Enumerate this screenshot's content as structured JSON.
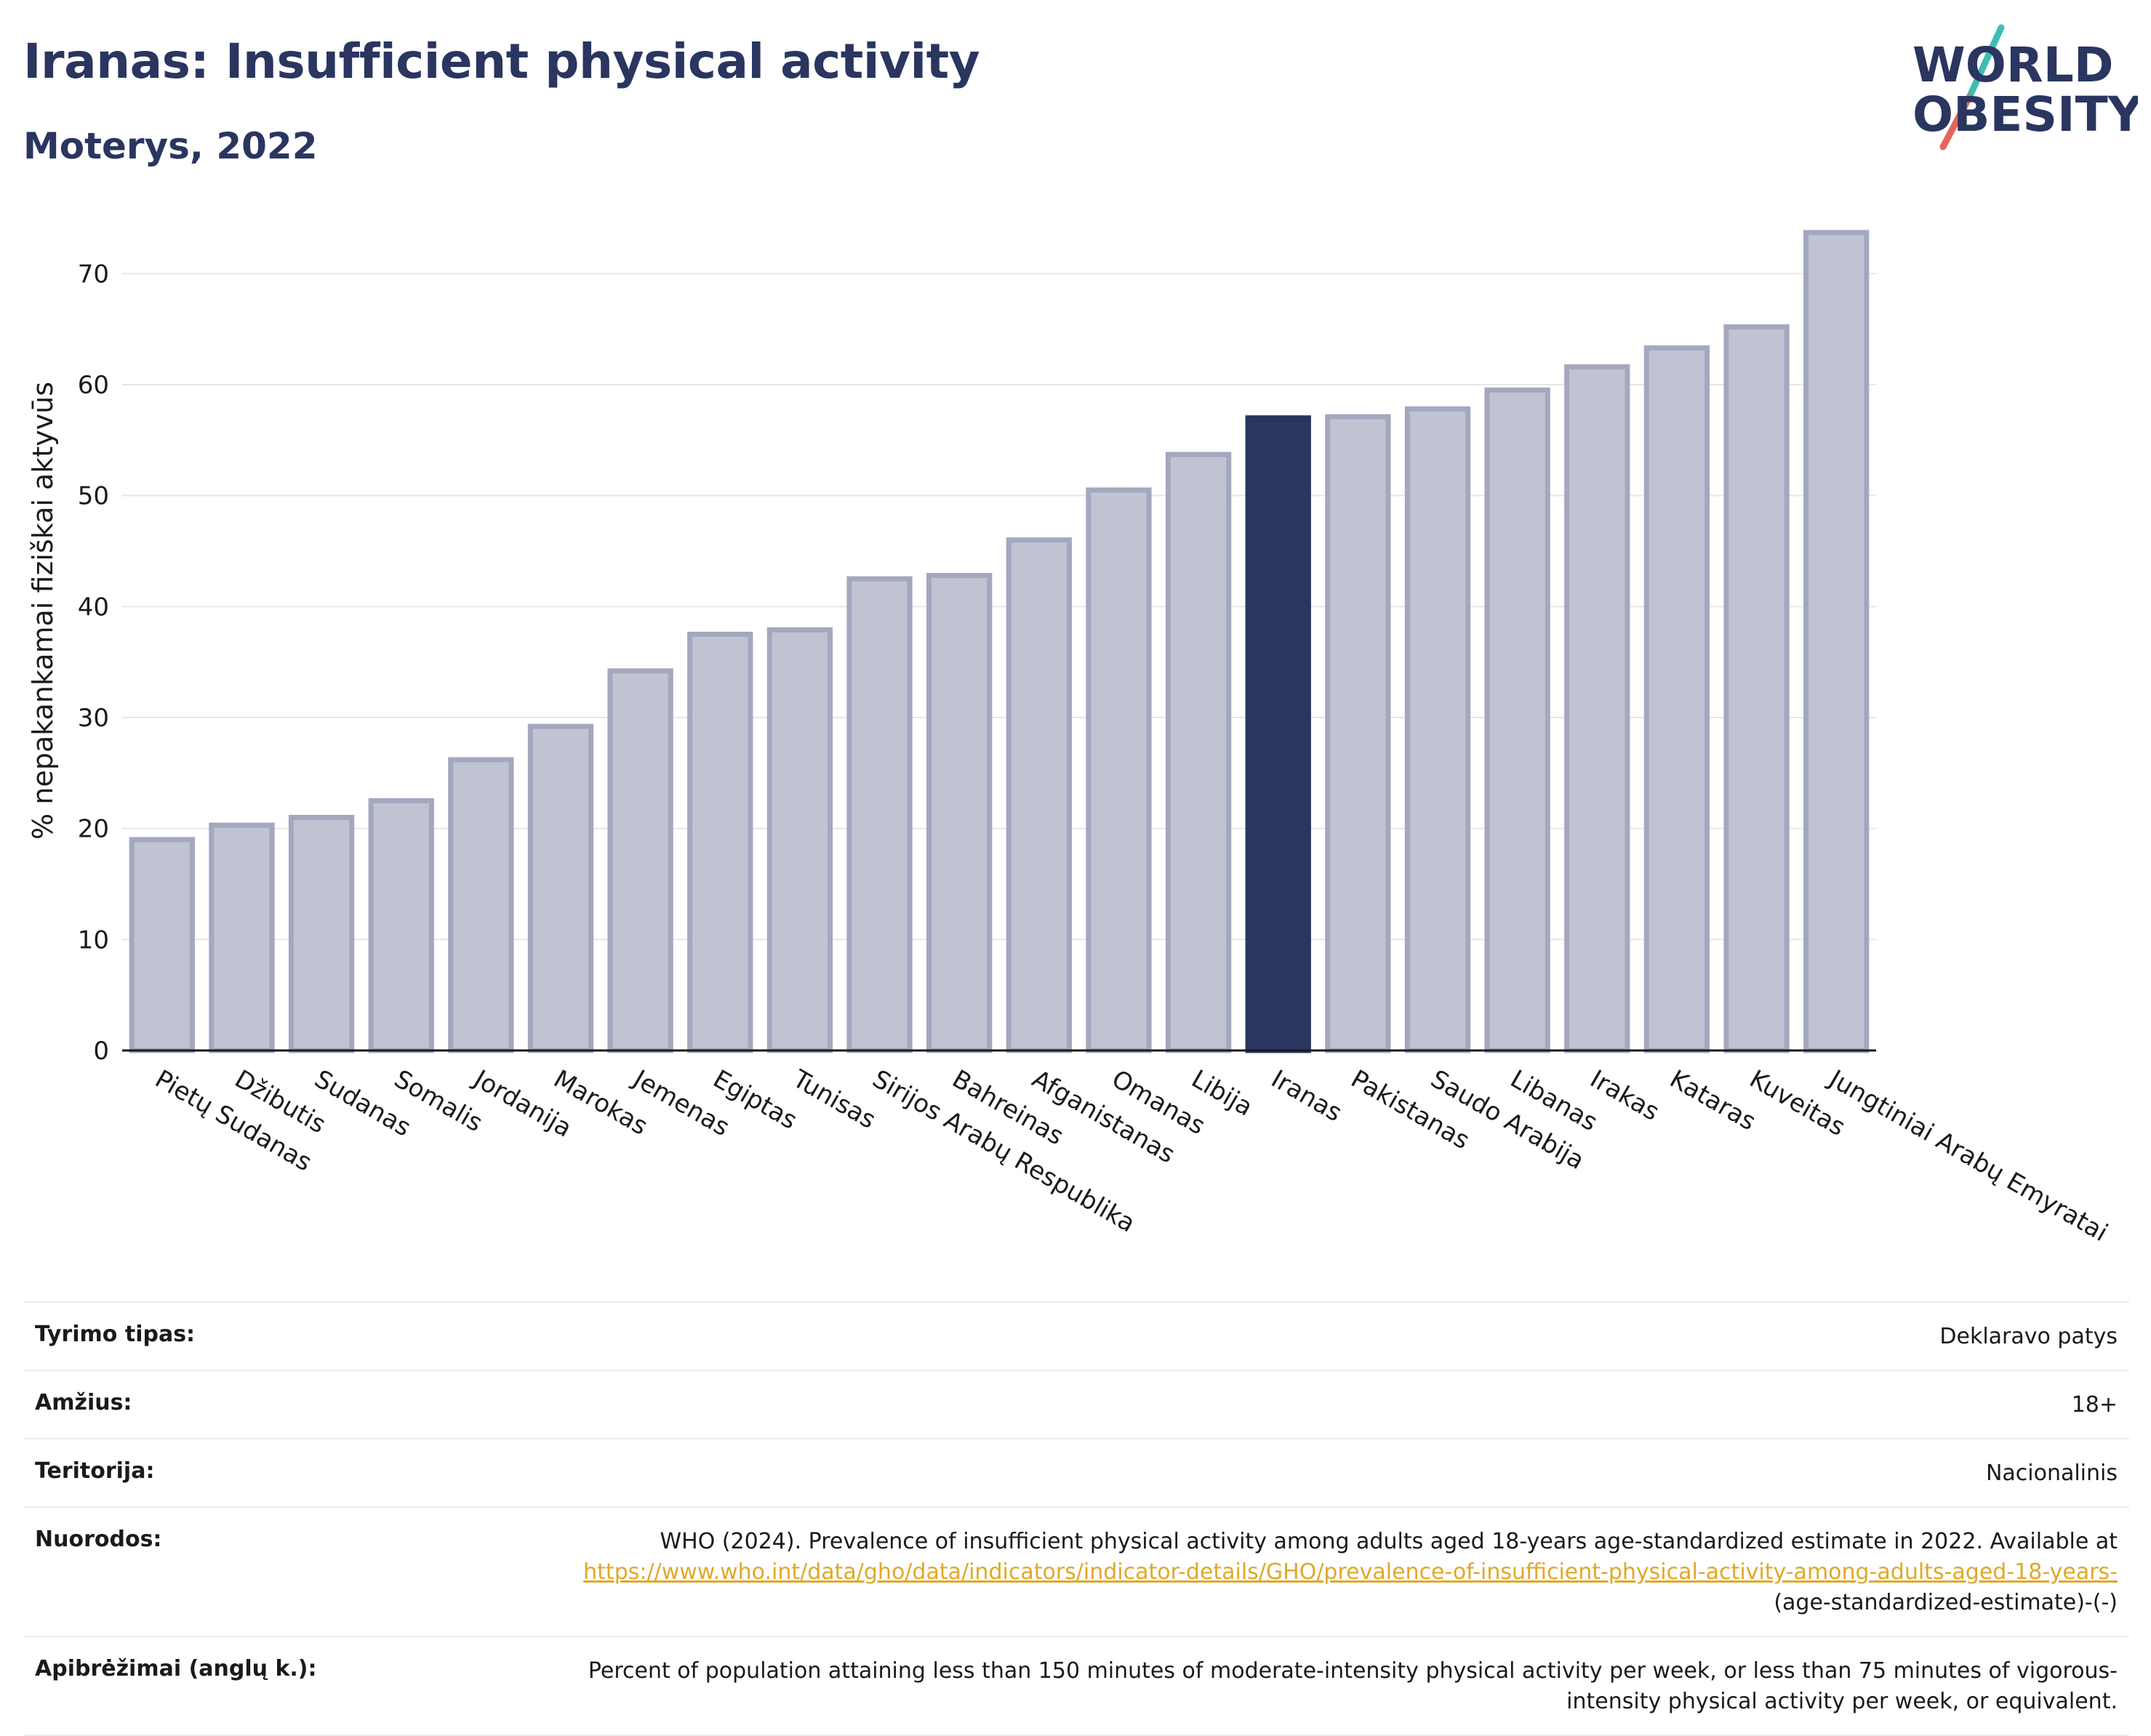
{
  "header": {
    "title": "Iranas: Insufficient physical activity",
    "subtitle": "Moterys, 2022"
  },
  "logo": {
    "line1": "WORLD",
    "line2": "OBESITY",
    "colors": {
      "text": "#2a3560",
      "slash_teal": "#3fbdb5",
      "slash_red": "#e3665a"
    }
  },
  "colors": {
    "bar_default": "#c0c3d1",
    "bar_border": "#a3a8bf",
    "bar_highlight": "#2a3560",
    "grid": "#e6e6e6"
  },
  "chart_data": {
    "type": "bar",
    "ylabel": "% nepakankamai fiziškai aktyvūs",
    "ylim": [
      0,
      75
    ],
    "yticks": [
      0,
      10,
      20,
      30,
      40,
      50,
      60,
      70
    ],
    "grid": true,
    "highlight": "Iranas",
    "categories": [
      "Pietų Sudanas",
      "Džibutis",
      "Sudanas",
      "Somalis",
      "Jordanija",
      "Marokas",
      "Jemenas",
      "Egiptas",
      "Tunisas",
      "Sirijos Arabų Respublika",
      "Bahreinas",
      "Afganistanas",
      "Omanas",
      "Libija",
      "Iranas",
      "Pakistanas",
      "Saudo Arabija",
      "Libanas",
      "Irakas",
      "Kataras",
      "Kuveitas",
      "Jungtiniai Arabų Emyratai"
    ],
    "values": [
      19.0,
      20.3,
      21.0,
      22.5,
      26.2,
      29.2,
      34.2,
      37.5,
      37.9,
      42.5,
      42.8,
      46.0,
      50.5,
      53.7,
      57.0,
      57.1,
      57.8,
      59.5,
      61.6,
      63.3,
      65.2,
      73.7
    ]
  },
  "info": {
    "survey_label": "Tyrimo tipas:",
    "survey_value": "Deklaravo patys",
    "age_label": "Amžius:",
    "age_value": "18+",
    "territory_label": "Teritorija:",
    "territory_value": "Nacionalinis",
    "refs_label": "Nuorodos:",
    "refs_text": "WHO (2024). Prevalence of insufficient physical activity among adults aged 18-years age-standardized estimate in 2022. Available at",
    "refs_link": "https://www.who.int/data/gho/data/indicators/indicator-details/GHO/prevalence-of-insufficient-physical-activity-among-adults-aged-18-years-",
    "refs_suffix": "(age-standardized-estimate)-(-)",
    "def_label": "Apibrėžimai (anglų k.):",
    "def_value": "Percent of population attaining less than 150 minutes of moderate-intensity physical activity per week, or less than 75 minutes of vigorous-intensity physical activity per week, or equivalent."
  }
}
